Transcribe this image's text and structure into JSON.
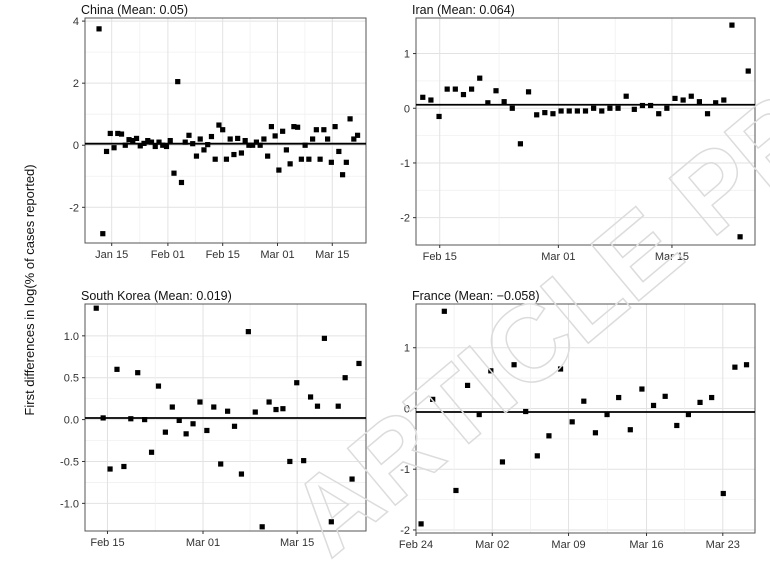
{
  "figure": {
    "ylabel": "First differences in log(% of cases reported)",
    "watermark": "ARTICLE PREVIEW"
  },
  "chart_data": [
    {
      "type": "scatter",
      "title": "China (Mean: 0.05)",
      "mean": 0.05,
      "xticks": [
        "Jan 15",
        "Feb 01",
        "Feb 15",
        "Mar 01",
        "Mar 15"
      ],
      "yticks": [
        "-2",
        "0",
        "2",
        "4"
      ],
      "y": [
        3.75,
        -2.85,
        -0.2,
        0.38,
        -0.08,
        0.38,
        0.36,
        0.0,
        0.18,
        0.15,
        0.22,
        -0.02,
        0.06,
        0.15,
        0.1,
        -0.04,
        0.1,
        0.0,
        -0.04,
        0.15,
        -0.9,
        2.05,
        -1.2,
        0.1,
        0.32,
        0.05,
        -0.35,
        0.2,
        -0.15,
        0.02,
        0.28,
        -0.45,
        0.65,
        0.5,
        -0.45,
        0.2,
        -0.3,
        0.22,
        -0.25,
        0.15,
        0.0,
        0.0,
        0.1,
        0.0,
        0.2,
        -0.35,
        0.6,
        0.3,
        -0.8,
        0.45,
        -0.15,
        -0.6,
        0.6,
        0.58,
        -0.45,
        0.0,
        -0.45,
        0.2,
        0.5,
        -0.45,
        0.5,
        0.2,
        -0.55,
        0.6,
        -0.2,
        -0.95,
        -0.55,
        0.85,
        0.2,
        0.32
      ]
    },
    {
      "type": "scatter",
      "title": "Iran (Mean: 0.064)",
      "mean": 0.064,
      "xticks": [
        "Feb 15",
        "Mar 01",
        "Mar 15"
      ],
      "yticks": [
        "-2",
        "-1",
        "0",
        "1"
      ],
      "y": [
        0.2,
        0.15,
        -0.15,
        0.35,
        0.35,
        0.25,
        0.35,
        0.55,
        0.1,
        0.32,
        0.12,
        0.0,
        -0.65,
        0.3,
        -0.12,
        -0.08,
        -0.1,
        -0.05,
        -0.05,
        -0.05,
        -0.05,
        0.0,
        -0.05,
        0.0,
        0.0,
        0.22,
        -0.02,
        0.05,
        0.05,
        -0.1,
        0.0,
        0.18,
        0.15,
        0.22,
        0.12,
        -0.1,
        0.1,
        0.15,
        1.52,
        -2.35,
        0.68
      ]
    },
    {
      "type": "scatter",
      "title": "South Korea (Mean: 0.019)",
      "mean": 0.019,
      "xticks": [
        "Feb 15",
        "Mar 01",
        "Mar 15"
      ],
      "yticks": [
        "-1.0",
        "-0.5",
        "0.0",
        "0.5",
        "1.0"
      ],
      "y": [
        1.33,
        0.02,
        -0.59,
        0.6,
        -0.56,
        0.01,
        0.56,
        0.0,
        -0.39,
        0.4,
        -0.15,
        0.15,
        -0.01,
        -0.17,
        -0.05,
        0.21,
        -0.13,
        0.15,
        -0.53,
        0.1,
        -0.08,
        -0.65,
        1.05,
        0.09,
        -1.28,
        0.21,
        0.12,
        0.13,
        -0.5,
        0.44,
        -0.49,
        0.27,
        0.16,
        0.97,
        -1.22,
        0.16,
        0.5,
        -0.71,
        0.67
      ]
    },
    {
      "type": "scatter",
      "title": "France (Mean: −0.058)",
      "mean": -0.058,
      "xticks": [
        "Feb 24",
        "Mar 02",
        "Mar 09",
        "Mar 16",
        "Mar 23"
      ],
      "yticks": [
        "-2",
        "-1",
        "0",
        "1"
      ],
      "y": [
        -1.9,
        0.15,
        1.6,
        -1.35,
        0.38,
        -0.1,
        0.62,
        -0.88,
        0.72,
        -0.05,
        -0.78,
        -0.45,
        0.65,
        -0.22,
        0.12,
        -0.4,
        -0.1,
        0.18,
        -0.35,
        0.32,
        0.05,
        0.2,
        -0.28,
        -0.1,
        0.1,
        0.18,
        -1.4,
        0.68,
        0.72
      ]
    }
  ]
}
